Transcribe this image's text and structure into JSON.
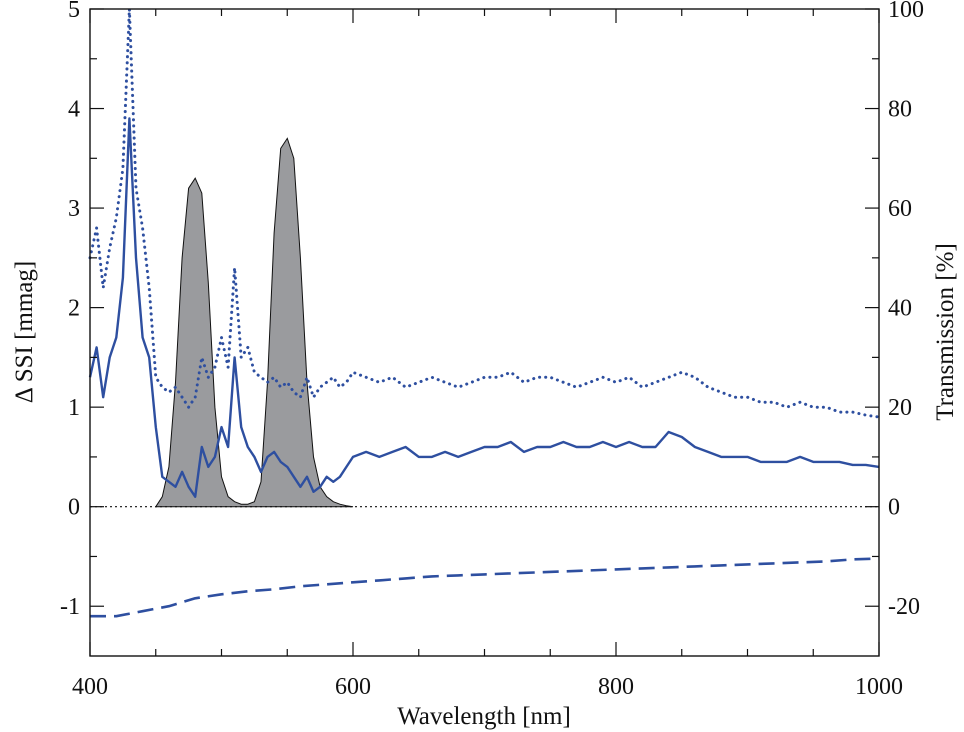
{
  "chart_data": {
    "type": "line",
    "title": "",
    "xlabel": "Wavelength [nm]",
    "ylabel_left": "Δ SSI [mmag]",
    "ylabel_right": "Transmission [%]",
    "xlim": [
      400,
      1000
    ],
    "ylim_left": [
      -1.5,
      5
    ],
    "ylim_right": [
      -30,
      100
    ],
    "x_ticks": [
      {
        "value": 400,
        "label": "400"
      },
      {
        "value": 600,
        "label": "600"
      },
      {
        "value": 800,
        "label": "800"
      },
      {
        "value": 1000,
        "label": "1000"
      }
    ],
    "x_minor_ticks": [
      450,
      500,
      550,
      650,
      700,
      750,
      850,
      900,
      950
    ],
    "y_left_ticks": [
      {
        "value": -1,
        "label": "-1"
      },
      {
        "value": 0,
        "label": "0"
      },
      {
        "value": 1,
        "label": "1"
      },
      {
        "value": 2,
        "label": "2"
      },
      {
        "value": 3,
        "label": "3"
      },
      {
        "value": 4,
        "label": "4"
      },
      {
        "value": 5,
        "label": "5"
      }
    ],
    "y_left_minor_ticks": [
      -0.5,
      0.5,
      1.5,
      2.5,
      3.5,
      4.5
    ],
    "y_right_ticks": [
      {
        "value": -20,
        "label": "-20"
      },
      {
        "value": 0,
        "label": "0"
      },
      {
        "value": 20,
        "label": "20"
      },
      {
        "value": 40,
        "label": "40"
      },
      {
        "value": 60,
        "label": "60"
      },
      {
        "value": 80,
        "label": "80"
      },
      {
        "value": 100,
        "label": "100"
      }
    ],
    "y_right_minor_ticks": [
      -10,
      10,
      30,
      50,
      70,
      90
    ],
    "zero_line": {
      "y": 0,
      "style": "dotted"
    },
    "grid": false,
    "legend": "none",
    "colors": {
      "series": "#2e4fa0",
      "filter_fill": "#9a9b9e",
      "filter_edge": "#111111",
      "axis": "#111111"
    },
    "series": [
      {
        "style": "dotted",
        "axis": "left",
        "x": [
          400,
          405,
          410,
          415,
          420,
          425,
          430,
          435,
          440,
          445,
          450,
          455,
          460,
          465,
          470,
          475,
          480,
          485,
          490,
          495,
          500,
          505,
          510,
          515,
          520,
          525,
          530,
          535,
          540,
          545,
          550,
          555,
          560,
          565,
          570,
          575,
          580,
          585,
          590,
          595,
          600,
          610,
          620,
          630,
          640,
          650,
          660,
          670,
          680,
          690,
          700,
          710,
          720,
          730,
          740,
          750,
          760,
          770,
          780,
          790,
          800,
          810,
          820,
          830,
          840,
          850,
          860,
          870,
          880,
          890,
          900,
          910,
          920,
          930,
          940,
          950,
          960,
          970,
          980,
          990,
          1000
        ],
        "y": [
          2.5,
          2.8,
          2.2,
          2.6,
          2.9,
          3.4,
          5.0,
          3.2,
          2.8,
          2.2,
          1.3,
          1.2,
          1.15,
          1.2,
          1.1,
          1.0,
          1.1,
          1.5,
          1.3,
          1.4,
          1.7,
          1.4,
          2.4,
          1.5,
          1.6,
          1.35,
          1.3,
          1.25,
          1.3,
          1.2,
          1.25,
          1.15,
          1.1,
          1.3,
          1.1,
          1.2,
          1.25,
          1.3,
          1.2,
          1.25,
          1.35,
          1.3,
          1.25,
          1.3,
          1.2,
          1.25,
          1.3,
          1.25,
          1.2,
          1.25,
          1.3,
          1.3,
          1.35,
          1.25,
          1.3,
          1.3,
          1.25,
          1.2,
          1.25,
          1.3,
          1.25,
          1.3,
          1.2,
          1.25,
          1.3,
          1.35,
          1.3,
          1.2,
          1.15,
          1.1,
          1.1,
          1.05,
          1.05,
          1.0,
          1.05,
          1.0,
          1.0,
          0.95,
          0.95,
          0.92,
          0.9
        ]
      },
      {
        "style": "solid",
        "axis": "left",
        "x": [
          400,
          405,
          410,
          415,
          420,
          425,
          430,
          435,
          440,
          445,
          450,
          455,
          460,
          465,
          470,
          475,
          480,
          485,
          490,
          495,
          500,
          505,
          510,
          515,
          520,
          525,
          530,
          535,
          540,
          545,
          550,
          555,
          560,
          565,
          570,
          575,
          580,
          585,
          590,
          595,
          600,
          610,
          620,
          630,
          640,
          650,
          660,
          670,
          680,
          690,
          700,
          710,
          720,
          730,
          740,
          750,
          760,
          770,
          780,
          790,
          800,
          810,
          820,
          830,
          840,
          850,
          860,
          870,
          880,
          890,
          900,
          910,
          920,
          930,
          940,
          950,
          960,
          970,
          980,
          990,
          1000
        ],
        "y": [
          1.3,
          1.6,
          1.1,
          1.5,
          1.7,
          2.3,
          3.9,
          2.5,
          1.7,
          1.5,
          0.8,
          0.3,
          0.25,
          0.2,
          0.35,
          0.2,
          0.1,
          0.6,
          0.4,
          0.5,
          0.8,
          0.6,
          1.5,
          0.8,
          0.6,
          0.5,
          0.35,
          0.5,
          0.55,
          0.45,
          0.4,
          0.3,
          0.2,
          0.3,
          0.15,
          0.2,
          0.3,
          0.25,
          0.3,
          0.4,
          0.5,
          0.55,
          0.5,
          0.55,
          0.6,
          0.5,
          0.5,
          0.55,
          0.5,
          0.55,
          0.6,
          0.6,
          0.65,
          0.55,
          0.6,
          0.6,
          0.65,
          0.6,
          0.6,
          0.65,
          0.6,
          0.65,
          0.6,
          0.6,
          0.75,
          0.7,
          0.6,
          0.55,
          0.5,
          0.5,
          0.5,
          0.45,
          0.45,
          0.45,
          0.5,
          0.45,
          0.45,
          0.45,
          0.42,
          0.42,
          0.4
        ]
      },
      {
        "style": "dashed",
        "axis": "left",
        "x": [
          400,
          420,
          440,
          460,
          480,
          500,
          520,
          540,
          560,
          580,
          600,
          620,
          640,
          660,
          680,
          700,
          720,
          740,
          760,
          780,
          800,
          820,
          840,
          860,
          880,
          900,
          920,
          940,
          960,
          980,
          1000
        ],
        "y": [
          -1.1,
          -1.1,
          -1.05,
          -1.0,
          -0.92,
          -0.88,
          -0.85,
          -0.83,
          -0.8,
          -0.78,
          -0.76,
          -0.74,
          -0.72,
          -0.7,
          -0.69,
          -0.68,
          -0.67,
          -0.66,
          -0.65,
          -0.64,
          -0.63,
          -0.62,
          -0.61,
          -0.6,
          -0.59,
          -0.58,
          -0.57,
          -0.56,
          -0.55,
          -0.53,
          -0.52
        ]
      },
      {
        "style": "filled",
        "axis": "right",
        "x": [
          450,
          455,
          460,
          465,
          470,
          475,
          480,
          485,
          490,
          495,
          500,
          505,
          510,
          515,
          520,
          525,
          530,
          535,
          540,
          545,
          550,
          555,
          560,
          565,
          570,
          575,
          580,
          585,
          590,
          595,
          600
        ],
        "y": [
          0,
          2,
          8,
          25,
          50,
          64,
          66,
          63,
          45,
          20,
          6,
          2,
          1,
          0.5,
          0.5,
          1,
          5,
          25,
          55,
          72,
          74,
          70,
          50,
          25,
          10,
          4,
          2,
          1,
          0.5,
          0.2,
          0
        ]
      }
    ]
  }
}
